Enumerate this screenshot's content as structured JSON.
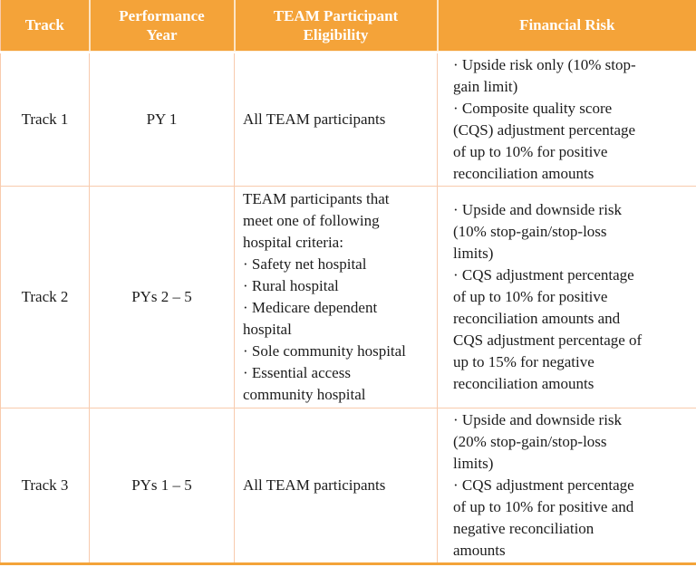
{
  "table": {
    "headers": [
      "Track",
      "Performance\nYear",
      "TEAM Participant\nEligibility",
      "Financial Risk"
    ],
    "rows": [
      {
        "track": "Track 1",
        "performance_year": "PY 1",
        "eligibility": [
          "All TEAM participants"
        ],
        "financial_risk": [
          "· Upside risk only (10% stop-\ngain limit)",
          "· Composite quality score\n(CQS) adjustment percentage\nof up to 10% for positive\nreconciliation amounts"
        ]
      },
      {
        "track": "Track 2",
        "performance_year": "PYs 2 – 5",
        "eligibility": [
          "TEAM participants that\nmeet one of following\nhospital criteria:",
          "· Safety net hospital",
          "· Rural hospital",
          "· Medicare dependent\nhospital",
          "· Sole community hospital",
          "· Essential access\ncommunity hospital"
        ],
        "financial_risk": [
          "· Upside and downside risk\n(10% stop-gain/stop-loss\nlimits)",
          "· CQS adjustment percentage\nof up to 10% for positive\nreconciliation amounts and\nCQS adjustment percentage of\nup to 15% for negative\nreconciliation amounts"
        ]
      },
      {
        "track": "Track 3",
        "performance_year": "PYs 1 – 5",
        "eligibility": [
          "All TEAM participants"
        ],
        "financial_risk": [
          "· Upside and downside risk\n(20% stop-gain/stop-loss\nlimits)",
          "· CQS adjustment percentage\nof up to 10% for positive and\nnegative reconciliation\namounts"
        ]
      }
    ]
  },
  "colors": {
    "header_bg": "#F4A339",
    "header_text": "#FFFFFF",
    "body_bg": "#FFFFFF",
    "grid_border": "#F8CBAD",
    "outer_bottom_border": "#F4A339",
    "body_text": "#1C1C1C"
  }
}
